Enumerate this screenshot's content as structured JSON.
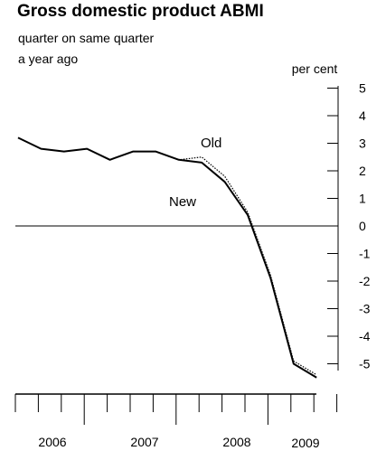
{
  "chart_data": {
    "type": "line",
    "title": "Gross domestic product ABMI",
    "subtitle_lines": [
      "quarter on same quarter",
      "a year ago"
    ],
    "ylabel": "per cent",
    "ylim": [
      -5.5,
      5
    ],
    "yticks": [
      5,
      4,
      3,
      2,
      1,
      0,
      -1,
      -2,
      -3,
      -4,
      -5
    ],
    "x_quarters": [
      "2006 Q1",
      "2006 Q2",
      "2006 Q3",
      "2006 Q4",
      "2007 Q1",
      "2007 Q2",
      "2007 Q3",
      "2007 Q4",
      "2008 Q1",
      "2008 Q2",
      "2008 Q3",
      "2008 Q4",
      "2009 Q1",
      "2009 Q2"
    ],
    "year_labels": [
      "2006",
      "2007",
      "2008",
      "2009"
    ],
    "series": [
      {
        "name": "New",
        "style": "solid",
        "values": [
          3.2,
          2.8,
          2.7,
          2.8,
          2.4,
          2.7,
          2.7,
          2.4,
          2.3,
          1.6,
          0.4,
          -1.9,
          -5.0,
          -5.5
        ]
      },
      {
        "name": "Old",
        "style": "dotted",
        "values": [
          3.2,
          2.8,
          2.7,
          2.8,
          2.4,
          2.7,
          2.7,
          2.4,
          2.5,
          1.8,
          0.5,
          -1.8,
          -4.9,
          -5.4
        ]
      }
    ],
    "zero_line": true,
    "grid": false
  }
}
